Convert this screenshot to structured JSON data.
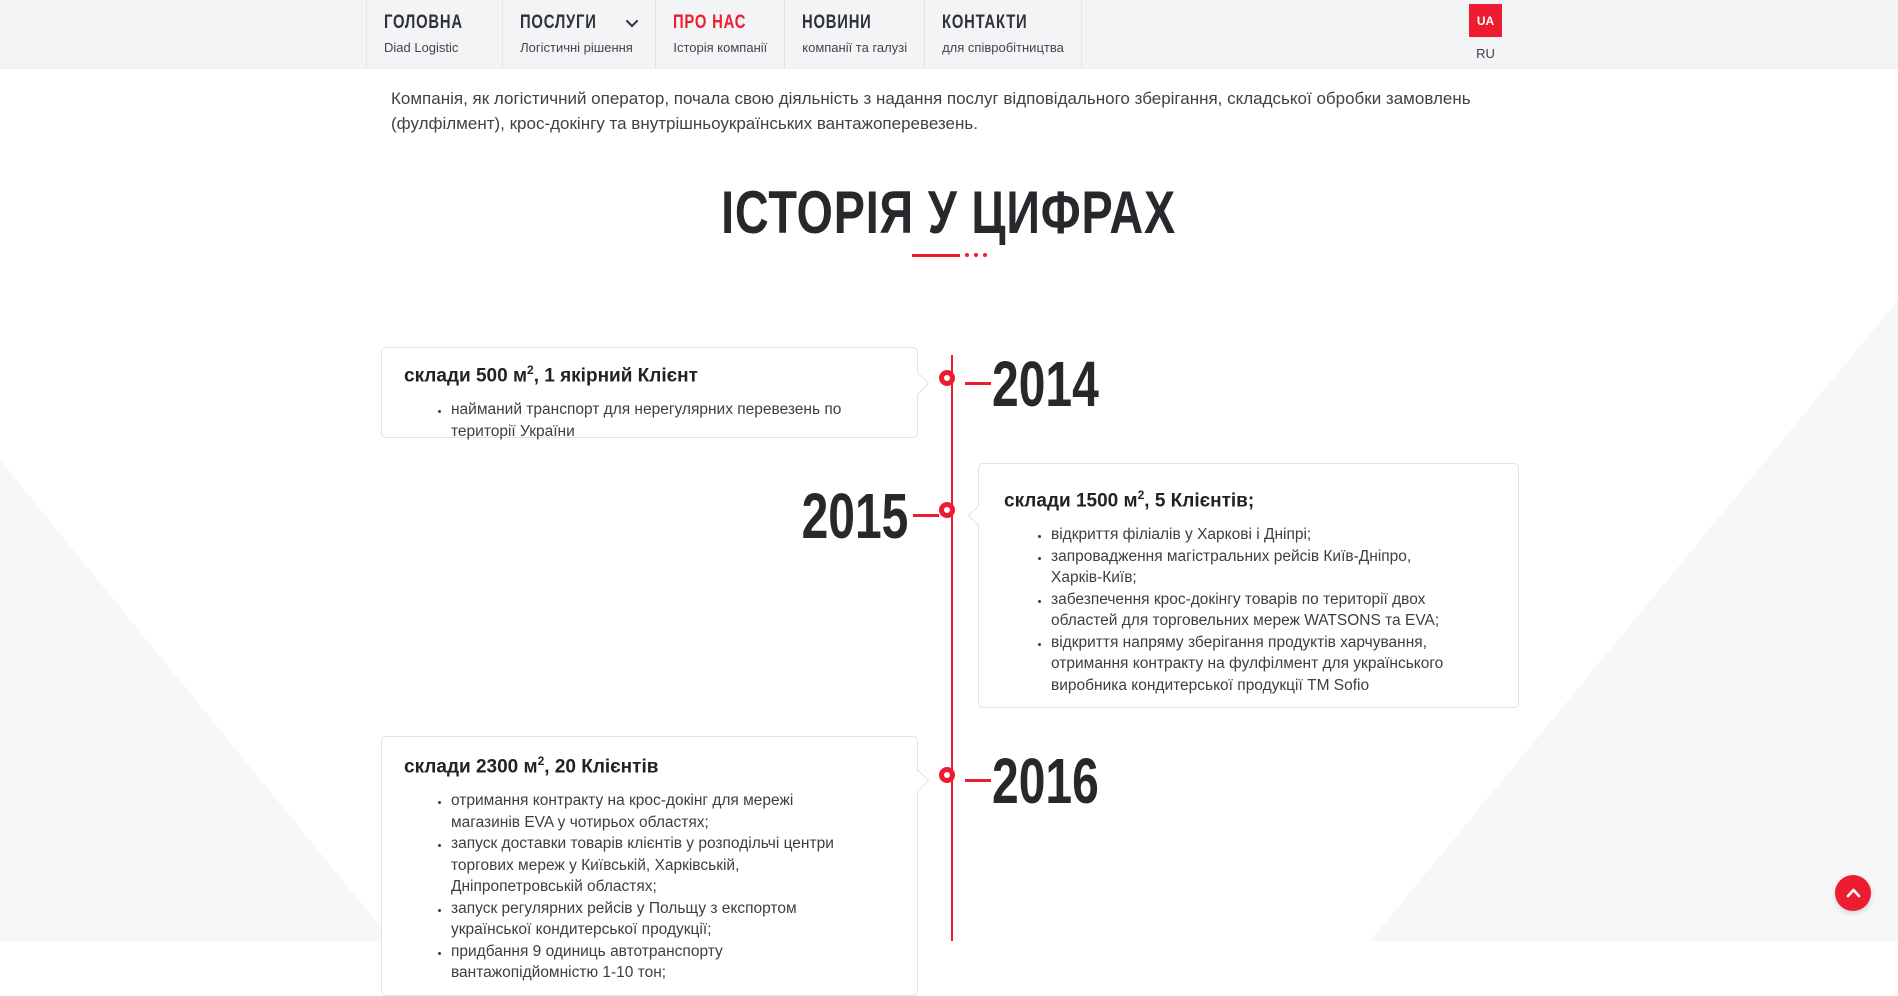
{
  "colors": {
    "accent": "#ED1C30"
  },
  "icons": {
    "dropdown": "chevron-down-icon",
    "scroll_top": "chevron-up-icon"
  },
  "header": {
    "nav": [
      {
        "title": "ГОЛОВНА",
        "subtitle": "Diad Logistic"
      },
      {
        "title": "ПОСЛУГИ",
        "subtitle": "Логістичні рішення",
        "has_dropdown": true
      },
      {
        "title": "ПРО НАС",
        "subtitle": "Історія компанії",
        "active": true
      },
      {
        "title": "НОВИНИ",
        "subtitle": "компанії та галузі"
      },
      {
        "title": "КОНТАКТИ",
        "subtitle": "для співробітництва"
      }
    ],
    "lang": {
      "current": "UA",
      "other": "RU"
    }
  },
  "intro": {
    "text": "Компанія, як логістичний оператор, почала свою діяльність з надання послуг відповідального зберігання, складської обробки замовлень (фулфілмент), крос-докінгу та внутрішньоукраїнських вантажоперевезень."
  },
  "section": {
    "title": "ІСТОРІЯ У ЦИФРАХ"
  },
  "timeline": [
    {
      "year": "2014",
      "title_pre": "склади 500 м",
      "title_sup": "2",
      "title_post": ", 1 якірний Клієнт",
      "bullets": [
        "найманий транспорт для нерегулярних перевезень по території України"
      ]
    },
    {
      "year": "2015",
      "title_pre": "склади 1500 м",
      "title_sup": "2",
      "title_post": ", 5 Клієнтів;",
      "bullets": [
        "відкриття філіалів у Харкові і Дніпрі;",
        "запровадження магістральних рейсів Київ-Дніпро, Харків-Київ;",
        "забезпечення крос-докінгу товарів по території двох областей для торговельних мереж WATSONS та EVA;",
        "відкриття напряму зберігання продуктів харчування, отримання контракту на фулфілмент для українського виробника кондитерської продукції ТМ Sofio"
      ]
    },
    {
      "year": "2016",
      "title_pre": "склади 2300 м",
      "title_sup": "2",
      "title_post": ", 20 Клієнтів",
      "bullets": [
        "отримання контракту на крос-докінг для мережі магазинів EVA у чотирьох областях;",
        "запуск доставки товарів клієнтів у розподільчі центри торгових мереж у Київській, Харківській, Дніпропетровській областях;",
        "запуск регулярних рейсів у Польщу з експортом української кондитерської продукції;",
        "придбання 9 одиниць автотранспорту вантажопідйомністю 1-10 тон;"
      ]
    }
  ]
}
